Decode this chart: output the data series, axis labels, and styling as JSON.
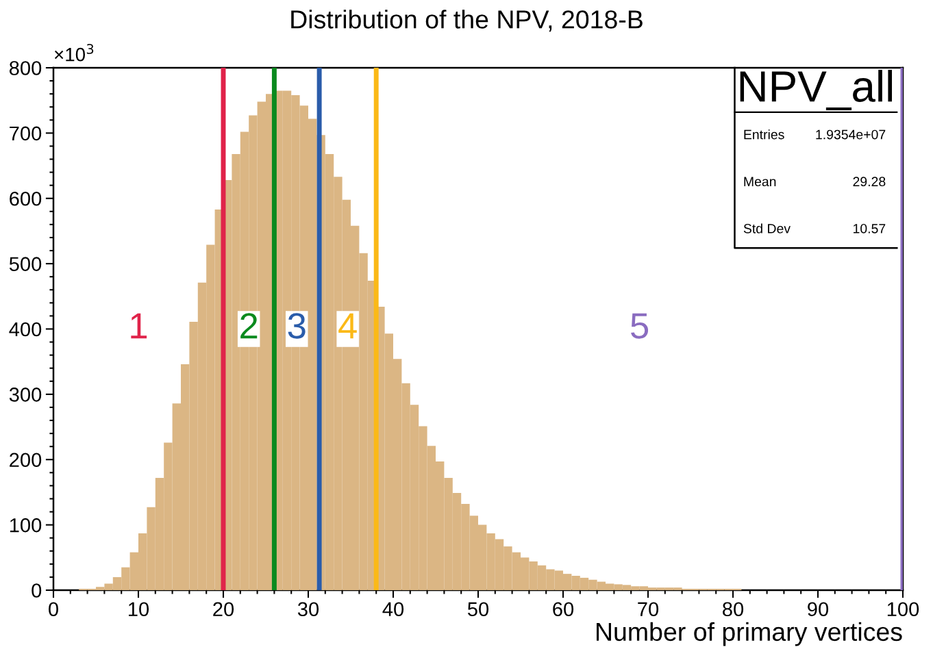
{
  "chart_data": {
    "type": "histogram",
    "title": "Distribution of the NPV, 2018-B",
    "xlabel": "Number of primary vertices",
    "bins": [
      0,
      1,
      2,
      3,
      4,
      5,
      6,
      7,
      8,
      9,
      10,
      11,
      12,
      13,
      14,
      15,
      16,
      17,
      18,
      19,
      20,
      21,
      22,
      23,
      24,
      25,
      26,
      27,
      28,
      29,
      30,
      31,
      32,
      33,
      34,
      35,
      36,
      37,
      38,
      39,
      40,
      41,
      42,
      43,
      44,
      45,
      46,
      47,
      48,
      49,
      50,
      51,
      52,
      53,
      54,
      55,
      56,
      57,
      58,
      59,
      60,
      61,
      62,
      63,
      64,
      65,
      66,
      67,
      68,
      69,
      70,
      71,
      72,
      73,
      74,
      75,
      76,
      77,
      78,
      79,
      80,
      81,
      82,
      83,
      84,
      85,
      86,
      87,
      88,
      89,
      90,
      91,
      92,
      93,
      94,
      95,
      96,
      97,
      98,
      99,
      100
    ],
    "values": [
      0,
      0,
      0,
      2,
      2,
      5,
      10,
      20,
      35,
      58,
      87,
      127,
      172,
      226,
      286,
      346,
      411,
      471,
      529,
      583,
      628,
      668,
      702,
      727,
      748,
      760,
      765,
      765,
      758,
      742,
      722,
      697,
      668,
      633,
      598,
      558,
      516,
      474,
      434,
      393,
      354,
      317,
      284,
      251,
      221,
      197,
      172,
      149,
      132,
      114,
      100,
      87,
      78,
      67,
      58,
      50,
      44,
      38,
      32,
      30,
      25,
      22,
      19,
      16,
      13,
      10,
      9,
      8,
      6,
      6,
      4,
      4,
      4,
      4,
      2,
      2,
      2,
      2,
      2,
      2,
      2,
      0,
      0,
      0,
      0,
      0,
      0,
      0,
      0,
      0,
      0,
      0,
      0,
      0,
      0,
      0,
      0,
      0,
      0,
      0
    ],
    "color": "#dbb684",
    "xlim": [
      0,
      100
    ],
    "xticks": [
      0,
      10,
      20,
      30,
      40,
      50,
      60,
      70,
      80,
      90,
      100
    ],
    "ylim": [
      0,
      800
    ],
    "yticks": [
      0,
      100,
      200,
      300,
      400,
      500,
      600,
      700,
      800
    ],
    "grid": false,
    "legend": false,
    "ref_lines": [
      {
        "axis": "x",
        "value": 20,
        "color": "#e0234a"
      },
      {
        "axis": "x",
        "value": 26,
        "color": "#0a8a1e"
      },
      {
        "axis": "x",
        "value": 31.3,
        "color": "#2a5caa"
      },
      {
        "axis": "x",
        "value": 38,
        "color": "#fbb917"
      },
      {
        "axis": "x",
        "value": 100,
        "color": "#8a6cc0"
      }
    ],
    "annotations": [
      "1",
      "2",
      "3",
      "4",
      "5",
      "×10$^{3}$",
      "NPV_all",
      "Entries",
      "1.9354e+07",
      "Mean",
      "29.28",
      "Std Dev",
      "10.57"
    ]
  }
}
